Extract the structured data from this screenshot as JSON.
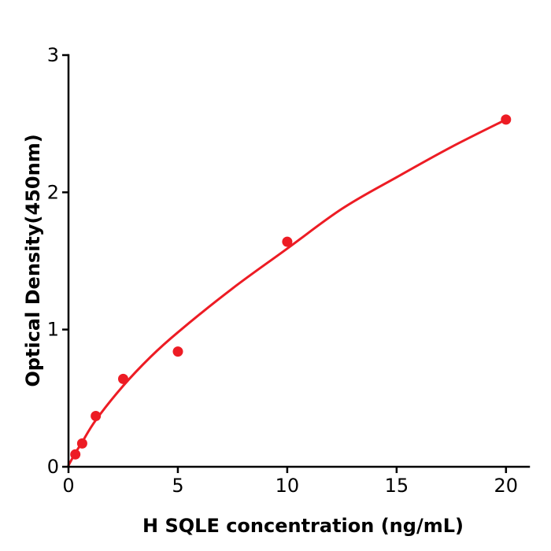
{
  "figure": {
    "background": "#ffffff"
  },
  "chart_data": {
    "type": "scatter",
    "title": "",
    "xlabel": "H  SQLE concentration (ng/mL)",
    "ylabel": "Optical Density(450nm)",
    "series": [
      {
        "name": "measured-points",
        "x": [
          0.3125,
          0.625,
          1.25,
          2.5,
          5,
          10,
          20
        ],
        "y": [
          0.09,
          0.17,
          0.37,
          0.64,
          0.84,
          1.64,
          2.53
        ]
      }
    ],
    "fit_curve": {
      "name": "fitted-curve",
      "x": [
        0,
        0.3125,
        0.625,
        1.25,
        2.5,
        3.75,
        5,
        7.5,
        10,
        12.5,
        15,
        17.5,
        20
      ],
      "y": [
        0.01,
        0.1,
        0.18,
        0.34,
        0.59,
        0.8,
        0.98,
        1.3,
        1.59,
        1.88,
        2.11,
        2.33,
        2.53
      ]
    },
    "xticks": [
      0,
      5,
      10,
      15,
      20
    ],
    "yticks": [
      0,
      1,
      2,
      3
    ],
    "xlim": [
      0,
      21.05
    ],
    "ylim": [
      0,
      3
    ],
    "grid": false,
    "legend": "none",
    "marker_color": "#ed1c24",
    "line_color": "#ed1c24",
    "axis_color": "#000000"
  }
}
